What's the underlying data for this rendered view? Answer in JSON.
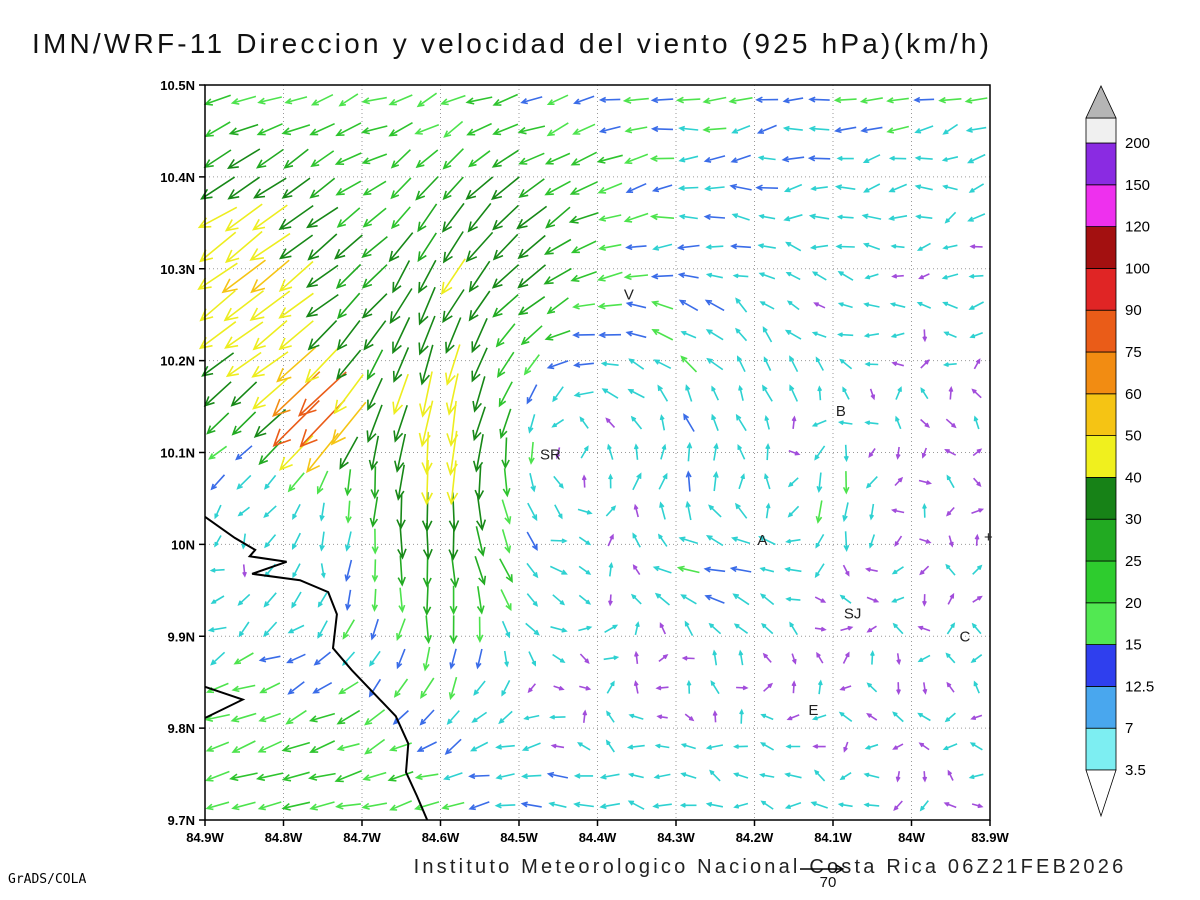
{
  "page": {
    "title": "IMN/WRF-11 Direccion y velocidad del viento (925 hPa)(km/h)",
    "caption": "Instituto Meteorologico Nacional Costa Rica 06Z21FEB2026",
    "credit": "GrADS/COLA",
    "background": "#ffffff"
  },
  "chart_data": {
    "type": "vector_field",
    "title": "IMN/WRF-11 Direccion y velocidad del viento (925 hPa)(km/h)",
    "units": "km/h",
    "level_hpa": 925,
    "valid_time": "06Z21FEB2026",
    "x_axis": {
      "min": 83.9,
      "max": 84.9,
      "ticks": [
        "84.9W",
        "84.8W",
        "84.7W",
        "84.6W",
        "84.5W",
        "84.4W",
        "84.3W",
        "84.2W",
        "84.1W",
        "84W",
        "83.9W"
      ]
    },
    "y_axis": {
      "min": 9.7,
      "max": 10.5,
      "ticks": [
        "9.7N",
        "9.8N",
        "9.9N",
        "10N",
        "10.1N",
        "10.2N",
        "10.3N",
        "10.4N",
        "10.5N"
      ]
    },
    "grid_dotted": true,
    "legend_position": "right",
    "reference_vector": {
      "value": 70,
      "label": "70"
    },
    "colorbar": {
      "labels": [
        "3.5",
        "7",
        "12.5",
        "15",
        "20",
        "25",
        "30",
        "40",
        "50",
        "60",
        "75",
        "90",
        "100",
        "120",
        "150",
        "200"
      ],
      "interval_colors": [
        "#7deef2",
        "#49a7ee",
        "#2f3fee",
        "#52e852",
        "#2ecc2e",
        "#22aa22",
        "#178217",
        "#f0f01e",
        "#f5c414",
        "#f28c12",
        "#ea5c18",
        "#e02525",
        "#a31010",
        "#ee30ee",
        "#8a2be2"
      ],
      "below_color": "#ffffff",
      "above_color": "#f0f0f0",
      "cap_color": "#b5b5b5"
    },
    "arrow_palette": {
      "levels": [
        3.5,
        12.5,
        15,
        20,
        25,
        30,
        40,
        50,
        60,
        75,
        90,
        100,
        120,
        150,
        200
      ],
      "colors": [
        "#a24ddb",
        "#2ed1d1",
        "#3a6ce8",
        "#4de34d",
        "#2ec42e",
        "#22aa22",
        "#178817",
        "#eded1f",
        "#f5c414",
        "#f28c12",
        "#ea5c18",
        "#e02525",
        "#b31212",
        "#ee30ee",
        "#8a2be2",
        "#eeeeee"
      ]
    },
    "grid": {
      "cols": 30,
      "rows": 25,
      "seed": 11,
      "noise": 7
    },
    "flow_blobs": [
      {
        "x": 0.5,
        "y": 1.06,
        "sx": 1.2,
        "sy": 0.3,
        "u": -15,
        "v": -3
      },
      {
        "x": 0.05,
        "y": 0.72,
        "sx": 0.14,
        "sy": 0.2,
        "u": -36,
        "v": -28
      },
      {
        "x": 0.14,
        "y": 0.55,
        "sx": 0.05,
        "sy": 0.06,
        "u": -52,
        "v": -44
      },
      {
        "x": 0.3,
        "y": 0.52,
        "sx": 0.1,
        "sy": 0.3,
        "u": -4,
        "v": -32
      },
      {
        "x": 0.08,
        "y": 0.1,
        "sx": 0.22,
        "sy": 0.18,
        "u": -14,
        "v": -7
      },
      {
        "x": 0.4,
        "y": -0.02,
        "sx": 0.45,
        "sy": 0.22,
        "u": -13,
        "v": 1
      },
      {
        "x": 0.63,
        "y": 0.34,
        "sx": 0.11,
        "sy": 0.08,
        "u": -21,
        "v": -3
      },
      {
        "x": 0.8,
        "y": 0.44,
        "sx": 0.06,
        "sy": 0.1,
        "u": -3,
        "v": -21
      },
      {
        "x": 0.4,
        "y": 0.8,
        "sx": 0.13,
        "sy": 0.13,
        "u": -10,
        "v": -14
      }
    ],
    "vortex": {
      "x": 0.46,
      "y": 0.5,
      "r": 0.26,
      "k": 95
    },
    "cities": [
      {
        "label": "V",
        "lon": 84.36,
        "lat": 10.272
      },
      {
        "label": "B",
        "lon": 84.09,
        "lat": 10.145
      },
      {
        "label": "SR",
        "lon": 84.46,
        "lat": 10.098
      },
      {
        "label": "A",
        "lon": 84.19,
        "lat": 10.005
      },
      {
        "label": "SJ",
        "lon": 84.075,
        "lat": 9.925
      },
      {
        "label": "C",
        "lon": 83.932,
        "lat": 9.9
      },
      {
        "label": "E",
        "lon": 84.125,
        "lat": 9.82
      },
      {
        "label": "+",
        "lon": 83.902,
        "lat": 10.008
      }
    ],
    "coastline": [
      [
        84.9,
        10.03
      ],
      [
        84.862,
        10.007
      ],
      [
        84.836,
        9.994
      ],
      [
        84.843,
        9.987
      ],
      [
        84.796,
        9.981
      ],
      [
        84.84,
        9.968
      ],
      [
        84.779,
        9.961
      ],
      [
        84.743,
        9.948
      ],
      [
        84.732,
        9.924
      ],
      [
        84.737,
        9.887
      ],
      [
        84.713,
        9.863
      ],
      [
        84.685,
        9.838
      ],
      [
        84.657,
        9.813
      ],
      [
        84.641,
        9.783
      ],
      [
        84.644,
        9.752
      ],
      [
        84.63,
        9.726
      ],
      [
        84.617,
        9.7
      ]
    ],
    "coastline2": [
      [
        84.9,
        9.845
      ],
      [
        84.852,
        9.831
      ],
      [
        84.9,
        9.811
      ]
    ]
  }
}
